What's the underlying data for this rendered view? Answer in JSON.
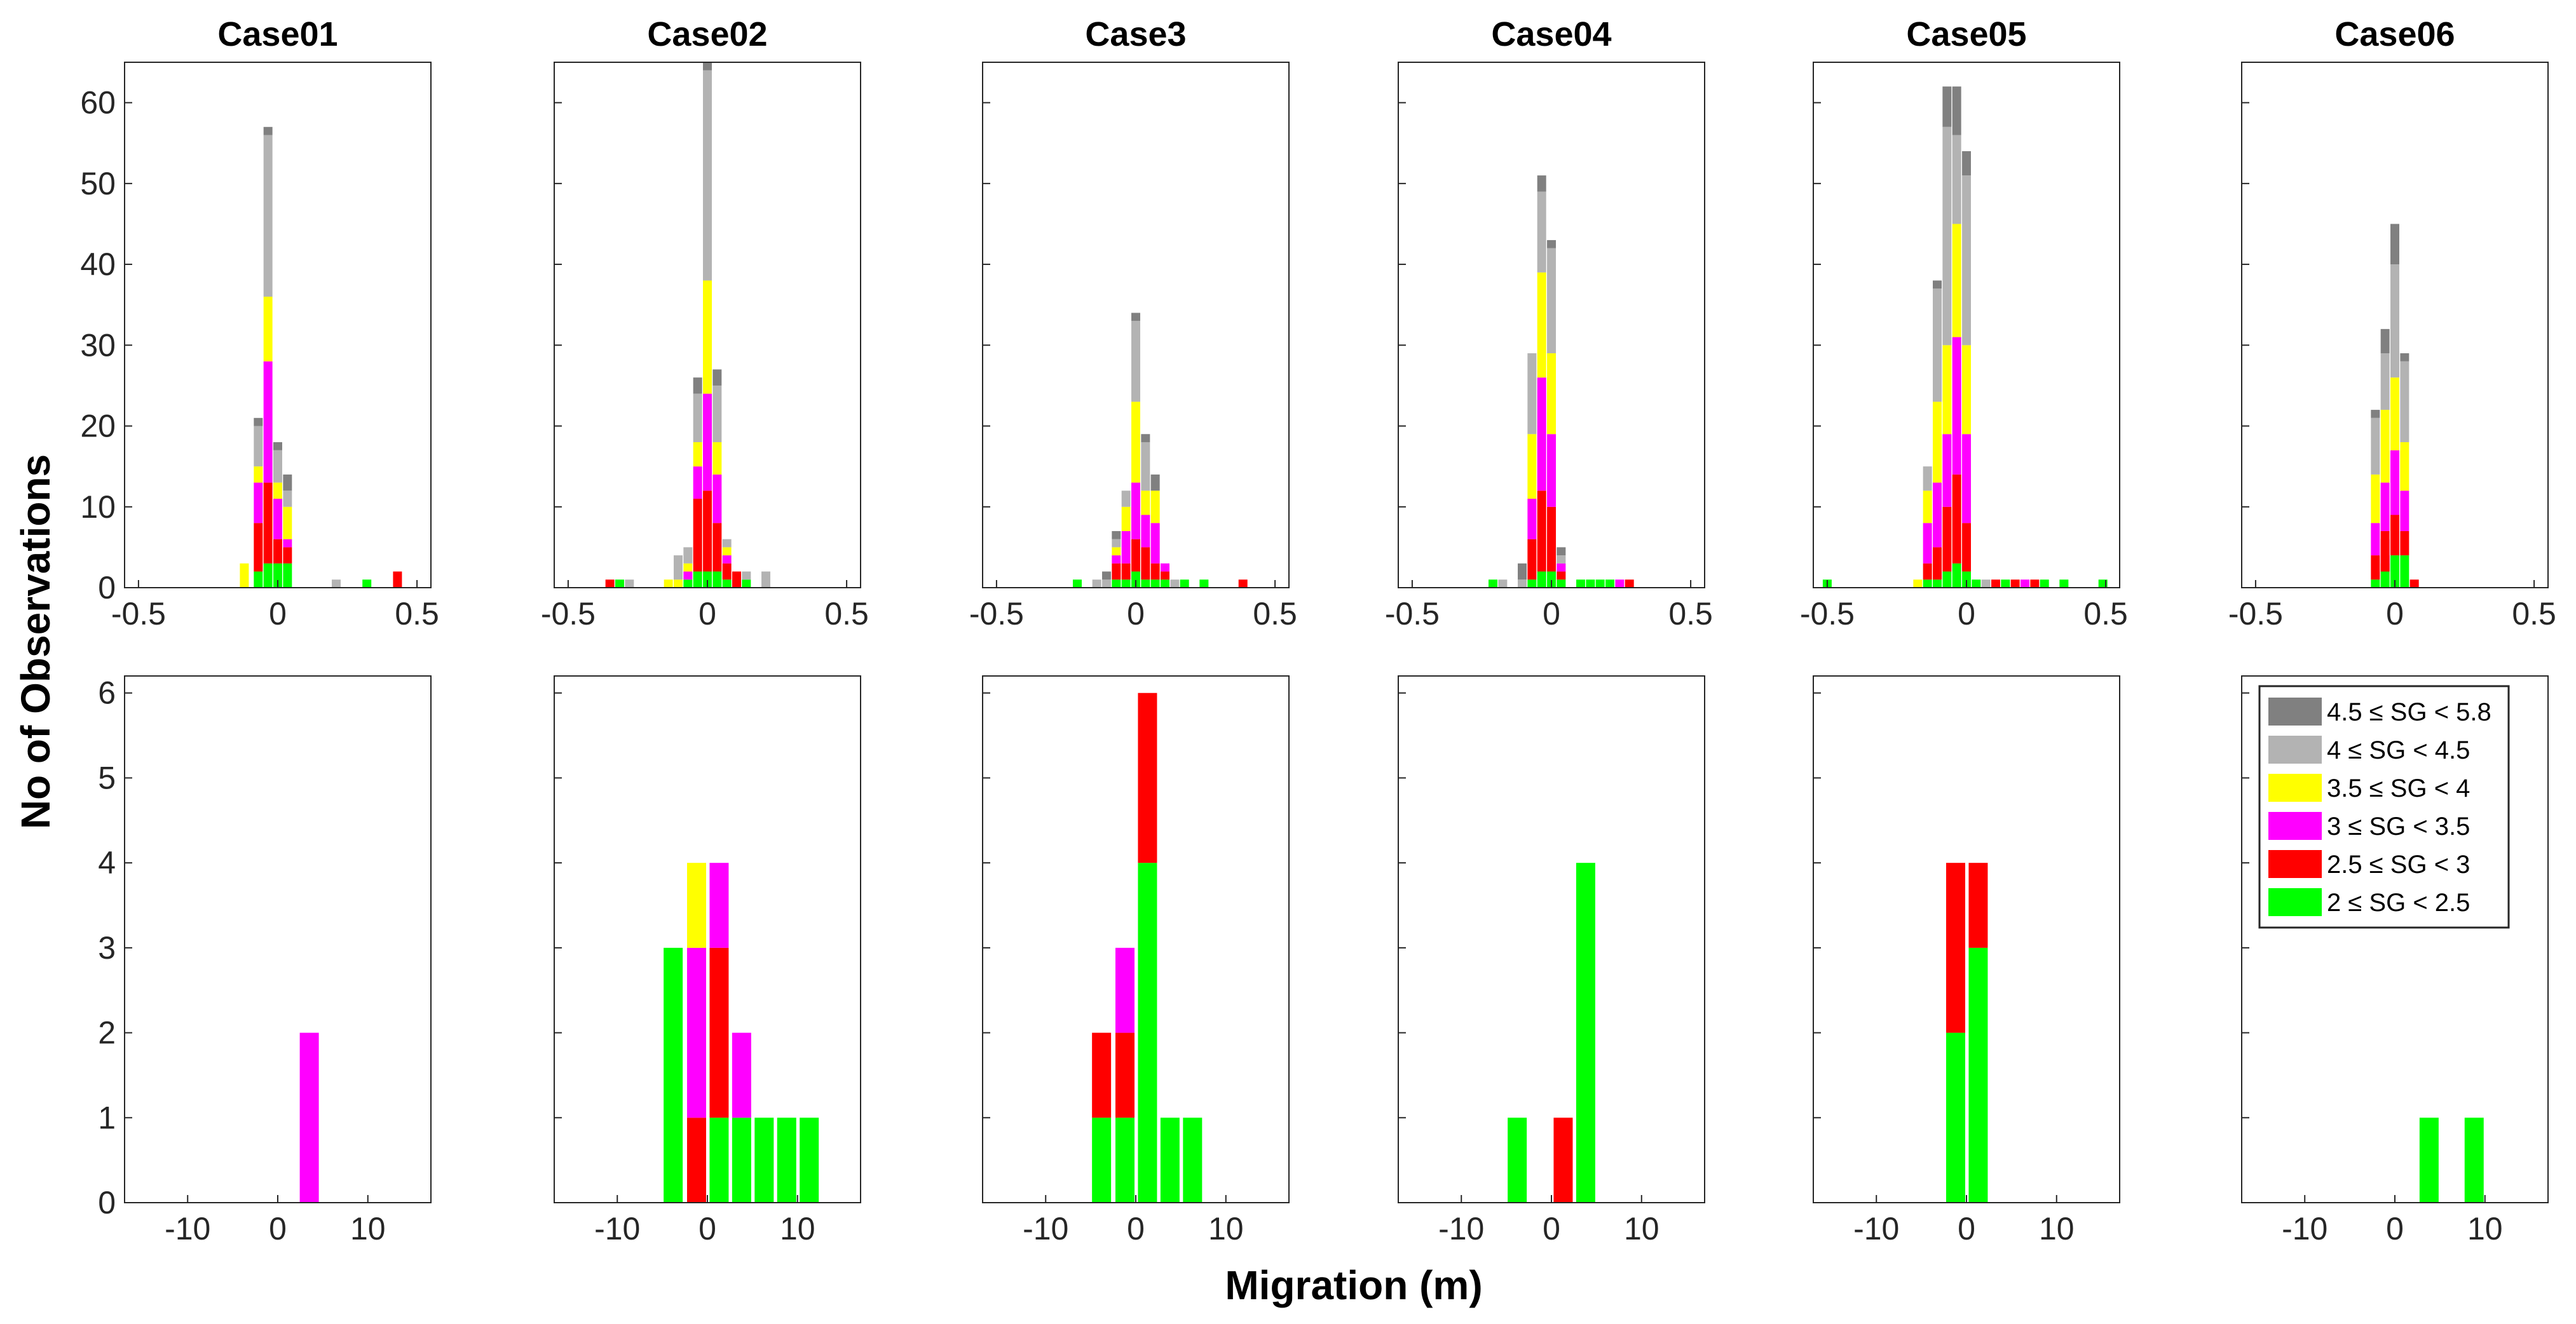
{
  "chart_data": {
    "type": "bar",
    "stacked": true,
    "ylabel": "No of Observations",
    "xlabel": "Migration (m)",
    "legend": {
      "placement": "inside-top-left of bottom-right panel",
      "entries": [
        {
          "label": "4.5 ≤ SG < 5.8",
          "color": "#808080"
        },
        {
          "label": "4 ≤ SG < 4.5",
          "color": "#b3b3b3"
        },
        {
          "label": "3.5 ≤ SG < 4",
          "color": "#ffff00"
        },
        {
          "label": "3 ≤ SG < 3.5",
          "color": "#ff00ff"
        },
        {
          "label": "2.5 ≤ SG < 3",
          "color": "#ff0000"
        },
        {
          "label": "2 ≤ SG < 2.5",
          "color": "#00ff00"
        }
      ]
    },
    "series_order": [
      "2 ≤ SG < 2.5",
      "2.5 ≤ SG < 3",
      "3 ≤ SG < 3.5",
      "3.5 ≤ SG < 4",
      "4 ≤ SG < 4.5",
      "4.5 ≤ SG < 5.8"
    ],
    "top_row": {
      "xlim": [
        -0.55,
        0.55
      ],
      "ylim": [
        0,
        65
      ],
      "xticks": [
        -0.5,
        0,
        0.5
      ],
      "xtick_labels": [
        "-0.5",
        "0",
        "0.5"
      ],
      "yticks": [
        0,
        10,
        20,
        30,
        40,
        50,
        60
      ],
      "ytick_labels": [
        "0",
        "10",
        "20",
        "30",
        "40",
        "50",
        "60"
      ],
      "bin_width": 0.035
    },
    "bottom_row": {
      "xlim": [
        -17,
        17
      ],
      "ylim": [
        0,
        6.2
      ],
      "xticks": [
        -10,
        0,
        10
      ],
      "xtick_labels": [
        "-10",
        "0",
        "10"
      ],
      "yticks": [
        0,
        1,
        2,
        3,
        4,
        5,
        6
      ],
      "ytick_labels": [
        "0",
        "1",
        "2",
        "3",
        "4",
        "5",
        "6"
      ],
      "bin_width": 2.5
    },
    "panels": [
      {
        "title": "Case01",
        "top": [
          {
            "x": -0.12,
            "counts": [
              0,
              0,
              0,
              3,
              0,
              0
            ]
          },
          {
            "x": -0.07,
            "counts": [
              2,
              6,
              5,
              2,
              5,
              1
            ]
          },
          {
            "x": -0.035,
            "counts": [
              3,
              10,
              15,
              8,
              20,
              1
            ]
          },
          {
            "x": 0.0,
            "counts": [
              3,
              3,
              5,
              2,
              4,
              1
            ]
          },
          {
            "x": 0.035,
            "counts": [
              3,
              2,
              1,
              4,
              2,
              2
            ]
          },
          {
            "x": 0.21,
            "counts": [
              0,
              0,
              0,
              0,
              1,
              0
            ]
          },
          {
            "x": 0.32,
            "counts": [
              1,
              0,
              0,
              0,
              0,
              0
            ]
          },
          {
            "x": 0.43,
            "counts": [
              0,
              2,
              0,
              0,
              0,
              0
            ]
          }
        ],
        "bottom": [
          {
            "x": 3.5,
            "counts": [
              0,
              0,
              2,
              0,
              0,
              0
            ]
          }
        ]
      },
      {
        "title": "Case02",
        "top": [
          {
            "x": -0.35,
            "counts": [
              0,
              1,
              0,
              0,
              0,
              0
            ]
          },
          {
            "x": -0.315,
            "counts": [
              1,
              0,
              0,
              0,
              0,
              0
            ]
          },
          {
            "x": -0.28,
            "counts": [
              0,
              0,
              0,
              0,
              1,
              0
            ]
          },
          {
            "x": -0.14,
            "counts": [
              0,
              0,
              0,
              1,
              0,
              0
            ]
          },
          {
            "x": -0.105,
            "counts": [
              0,
              0,
              0,
              1,
              3,
              0
            ]
          },
          {
            "x": -0.07,
            "counts": [
              1,
              0,
              1,
              1,
              2,
              0
            ]
          },
          {
            "x": -0.035,
            "counts": [
              2,
              9,
              4,
              3,
              6,
              2
            ]
          },
          {
            "x": 0.0,
            "counts": [
              2,
              10,
              12,
              14,
              26,
              1
            ]
          },
          {
            "x": 0.035,
            "counts": [
              2,
              6,
              6,
              4,
              7,
              2
            ]
          },
          {
            "x": 0.07,
            "counts": [
              1,
              2,
              1,
              1,
              1,
              0
            ]
          },
          {
            "x": 0.105,
            "counts": [
              0,
              2,
              0,
              0,
              0,
              0
            ]
          },
          {
            "x": 0.14,
            "counts": [
              1,
              0,
              0,
              0,
              1,
              0
            ]
          },
          {
            "x": 0.21,
            "counts": [
              0,
              0,
              0,
              0,
              2,
              0
            ]
          }
        ],
        "bottom": [
          {
            "x": -3.8,
            "counts": [
              3,
              0,
              0,
              0,
              0,
              0
            ]
          },
          {
            "x": -1.2,
            "counts": [
              0,
              1,
              2,
              1,
              0,
              0
            ]
          },
          {
            "x": 1.3,
            "counts": [
              1,
              2,
              1,
              0,
              0,
              0
            ]
          },
          {
            "x": 3.8,
            "counts": [
              1,
              0,
              1,
              0,
              0,
              0
            ]
          },
          {
            "x": 6.3,
            "counts": [
              1,
              0,
              0,
              0,
              0,
              0
            ]
          },
          {
            "x": 8.8,
            "counts": [
              1,
              0,
              0,
              0,
              0,
              0
            ]
          },
          {
            "x": 11.3,
            "counts": [
              1,
              0,
              0,
              0,
              0,
              0
            ]
          }
        ]
      },
      {
        "title": "Case3",
        "top": [
          {
            "x": -0.21,
            "counts": [
              1,
              0,
              0,
              0,
              0,
              0
            ]
          },
          {
            "x": -0.14,
            "counts": [
              0,
              0,
              0,
              0,
              1,
              0
            ]
          },
          {
            "x": -0.105,
            "counts": [
              0,
              0,
              0,
              0,
              1,
              1
            ]
          },
          {
            "x": -0.07,
            "counts": [
              1,
              2,
              1,
              1,
              1,
              1
            ]
          },
          {
            "x": -0.035,
            "counts": [
              1,
              2,
              4,
              3,
              2,
              0
            ]
          },
          {
            "x": 0.0,
            "counts": [
              2,
              4,
              7,
              10,
              10,
              1
            ]
          },
          {
            "x": 0.035,
            "counts": [
              1,
              4,
              4,
              3,
              6,
              1
            ]
          },
          {
            "x": 0.07,
            "counts": [
              1,
              2,
              5,
              4,
              0,
              2
            ]
          },
          {
            "x": 0.105,
            "counts": [
              1,
              1,
              1,
              0,
              0,
              0
            ]
          },
          {
            "x": 0.14,
            "counts": [
              0,
              0,
              0,
              0,
              1,
              0
            ]
          },
          {
            "x": 0.175,
            "counts": [
              1,
              0,
              0,
              0,
              0,
              0
            ]
          },
          {
            "x": 0.245,
            "counts": [
              1,
              0,
              0,
              0,
              0,
              0
            ]
          },
          {
            "x": 0.385,
            "counts": [
              0,
              1,
              0,
              0,
              0,
              0
            ]
          }
        ],
        "bottom": [
          {
            "x": -3.8,
            "counts": [
              1,
              1,
              0,
              0,
              0,
              0
            ]
          },
          {
            "x": -1.2,
            "counts": [
              1,
              1,
              1,
              0,
              0,
              0
            ]
          },
          {
            "x": 1.3,
            "counts": [
              4,
              2,
              0,
              0,
              0,
              0
            ]
          },
          {
            "x": 3.8,
            "counts": [
              1,
              0,
              0,
              0,
              0,
              0
            ]
          },
          {
            "x": 6.3,
            "counts": [
              1,
              0,
              0,
              0,
              0,
              0
            ]
          }
        ]
      },
      {
        "title": "Case04",
        "top": [
          {
            "x": -0.21,
            "counts": [
              1,
              0,
              0,
              0,
              0,
              0
            ]
          },
          {
            "x": -0.175,
            "counts": [
              0,
              0,
              0,
              0,
              1,
              0
            ]
          },
          {
            "x": -0.105,
            "counts": [
              0,
              0,
              0,
              0,
              1,
              2
            ]
          },
          {
            "x": -0.07,
            "counts": [
              1,
              5,
              5,
              8,
              10,
              0
            ]
          },
          {
            "x": -0.035,
            "counts": [
              2,
              10,
              14,
              13,
              10,
              2
            ]
          },
          {
            "x": 0.0,
            "counts": [
              2,
              8,
              9,
              10,
              13,
              1
            ]
          },
          {
            "x": 0.035,
            "counts": [
              1,
              1,
              1,
              0,
              1,
              1
            ]
          },
          {
            "x": 0.105,
            "counts": [
              1,
              0,
              0,
              0,
              0,
              0
            ]
          },
          {
            "x": 0.14,
            "counts": [
              1,
              0,
              0,
              0,
              0,
              0
            ]
          },
          {
            "x": 0.175,
            "counts": [
              1,
              0,
              0,
              0,
              0,
              0
            ]
          },
          {
            "x": 0.21,
            "counts": [
              1,
              0,
              0,
              0,
              0,
              0
            ]
          },
          {
            "x": 0.245,
            "counts": [
              0,
              0,
              1,
              0,
              0,
              0
            ]
          },
          {
            "x": 0.28,
            "counts": [
              0,
              1,
              0,
              0,
              0,
              0
            ]
          }
        ],
        "bottom": [
          {
            "x": -3.8,
            "counts": [
              1,
              0,
              0,
              0,
              0,
              0
            ]
          },
          {
            "x": 1.3,
            "counts": [
              0,
              1,
              0,
              0,
              0,
              0
            ]
          },
          {
            "x": 3.8,
            "counts": [
              4,
              0,
              0,
              0,
              0,
              0
            ]
          }
        ]
      },
      {
        "title": "Case05",
        "top": [
          {
            "x": -0.5,
            "counts": [
              1,
              0,
              0,
              0,
              0,
              0
            ]
          },
          {
            "x": -0.175,
            "counts": [
              0,
              0,
              0,
              1,
              0,
              0
            ]
          },
          {
            "x": -0.14,
            "counts": [
              1,
              2,
              5,
              4,
              3,
              0
            ]
          },
          {
            "x": -0.105,
            "counts": [
              1,
              4,
              8,
              10,
              14,
              1
            ]
          },
          {
            "x": -0.07,
            "counts": [
              2,
              8,
              9,
              11,
              27,
              5
            ]
          },
          {
            "x": -0.035,
            "counts": [
              3,
              11,
              17,
              14,
              11,
              6
            ]
          },
          {
            "x": 0.0,
            "counts": [
              2,
              6,
              11,
              11,
              21,
              3
            ]
          },
          {
            "x": 0.035,
            "counts": [
              1,
              0,
              0,
              0,
              0,
              0
            ]
          },
          {
            "x": 0.07,
            "counts": [
              0,
              0,
              0,
              0,
              1,
              0
            ]
          },
          {
            "x": 0.105,
            "counts": [
              0,
              1,
              0,
              0,
              0,
              0
            ]
          },
          {
            "x": 0.14,
            "counts": [
              1,
              0,
              0,
              0,
              0,
              0
            ]
          },
          {
            "x": 0.175,
            "counts": [
              0,
              1,
              0,
              0,
              0,
              0
            ]
          },
          {
            "x": 0.21,
            "counts": [
              0,
              0,
              1,
              0,
              0,
              0
            ]
          },
          {
            "x": 0.245,
            "counts": [
              0,
              1,
              0,
              0,
              0,
              0
            ]
          },
          {
            "x": 0.28,
            "counts": [
              1,
              0,
              0,
              0,
              0,
              0
            ]
          },
          {
            "x": 0.35,
            "counts": [
              1,
              0,
              0,
              0,
              0,
              0
            ]
          },
          {
            "x": 0.49,
            "counts": [
              1,
              0,
              0,
              0,
              0,
              0
            ]
          }
        ],
        "bottom": [
          {
            "x": -1.2,
            "counts": [
              2,
              2,
              0,
              0,
              0,
              0
            ]
          },
          {
            "x": 1.3,
            "counts": [
              3,
              1,
              0,
              0,
              0,
              0
            ]
          }
        ]
      },
      {
        "title": "Case06",
        "top": [
          {
            "x": -0.035,
            "counts": [
              1,
              2,
              3,
              0,
              0,
              0
            ]
          },
          {
            "x": -0.07,
            "counts": [
              1,
              3,
              4,
              6,
              7,
              1
            ]
          },
          {
            "x": -0.035,
            "counts": [
              2,
              5,
              6,
              9,
              7,
              3
            ]
          },
          {
            "x": 0.0,
            "counts": [
              4,
              5,
              8,
              9,
              14,
              5
            ]
          },
          {
            "x": 0.035,
            "counts": [
              4,
              3,
              5,
              6,
              10,
              1
            ]
          },
          {
            "x": 0.07,
            "counts": [
              0,
              1,
              0,
              0,
              0,
              0
            ]
          }
        ],
        "bottom": [
          {
            "x": 3.8,
            "counts": [
              1,
              0,
              0,
              0,
              0,
              0
            ]
          },
          {
            "x": 8.8,
            "counts": [
              1,
              0,
              0,
              0,
              0,
              0
            ]
          }
        ]
      }
    ]
  }
}
